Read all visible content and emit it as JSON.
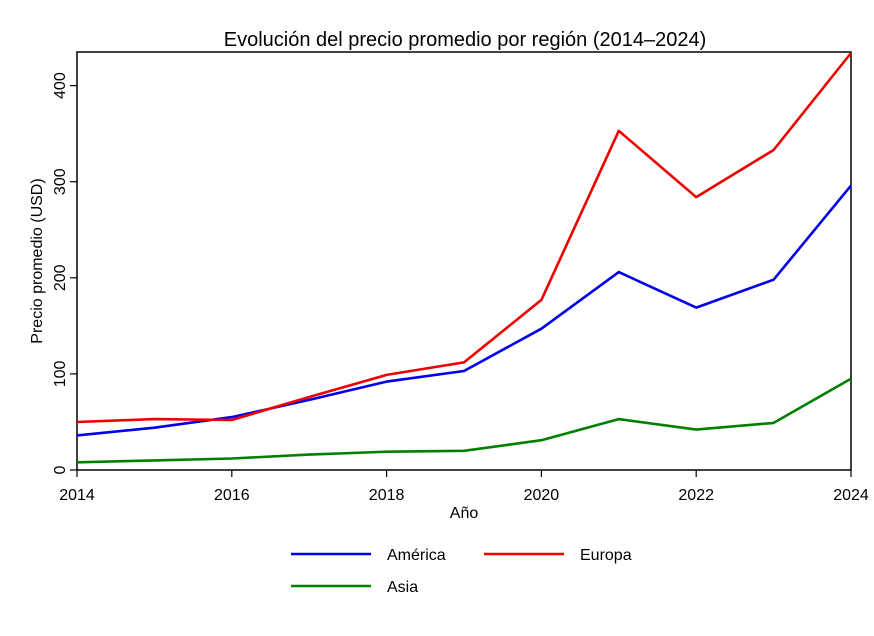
{
  "chart_data": {
    "type": "line",
    "title": "Evolución del precio promedio por región (2014–2024)",
    "xlabel": "Año",
    "ylabel": "Precio promedio (USD)",
    "xlim": [
      2014,
      2024
    ],
    "ylim": [
      0,
      435
    ],
    "xticks": [
      2014,
      2016,
      2018,
      2020,
      2022,
      2024
    ],
    "yticks": [
      0,
      100,
      200,
      300,
      400
    ],
    "grid": false,
    "legend_position": "bottom",
    "x": [
      2014,
      2015,
      2016,
      2017,
      2018,
      2019,
      2020,
      2021,
      2022,
      2023,
      2024
    ],
    "series": [
      {
        "name": "América",
        "color": "#0000ee",
        "values": [
          36,
          44,
          55,
          73,
          92,
          103,
          147,
          206,
          169,
          198,
          296
        ]
      },
      {
        "name": "Europa",
        "color": "#ee0000",
        "values": [
          50,
          53,
          52,
          76,
          99,
          112,
          177,
          353,
          284,
          333,
          434
        ]
      },
      {
        "name": "Asia",
        "color": "#008000",
        "values": [
          8,
          10,
          12,
          16,
          19,
          20,
          31,
          53,
          42,
          49,
          95
        ]
      }
    ]
  }
}
